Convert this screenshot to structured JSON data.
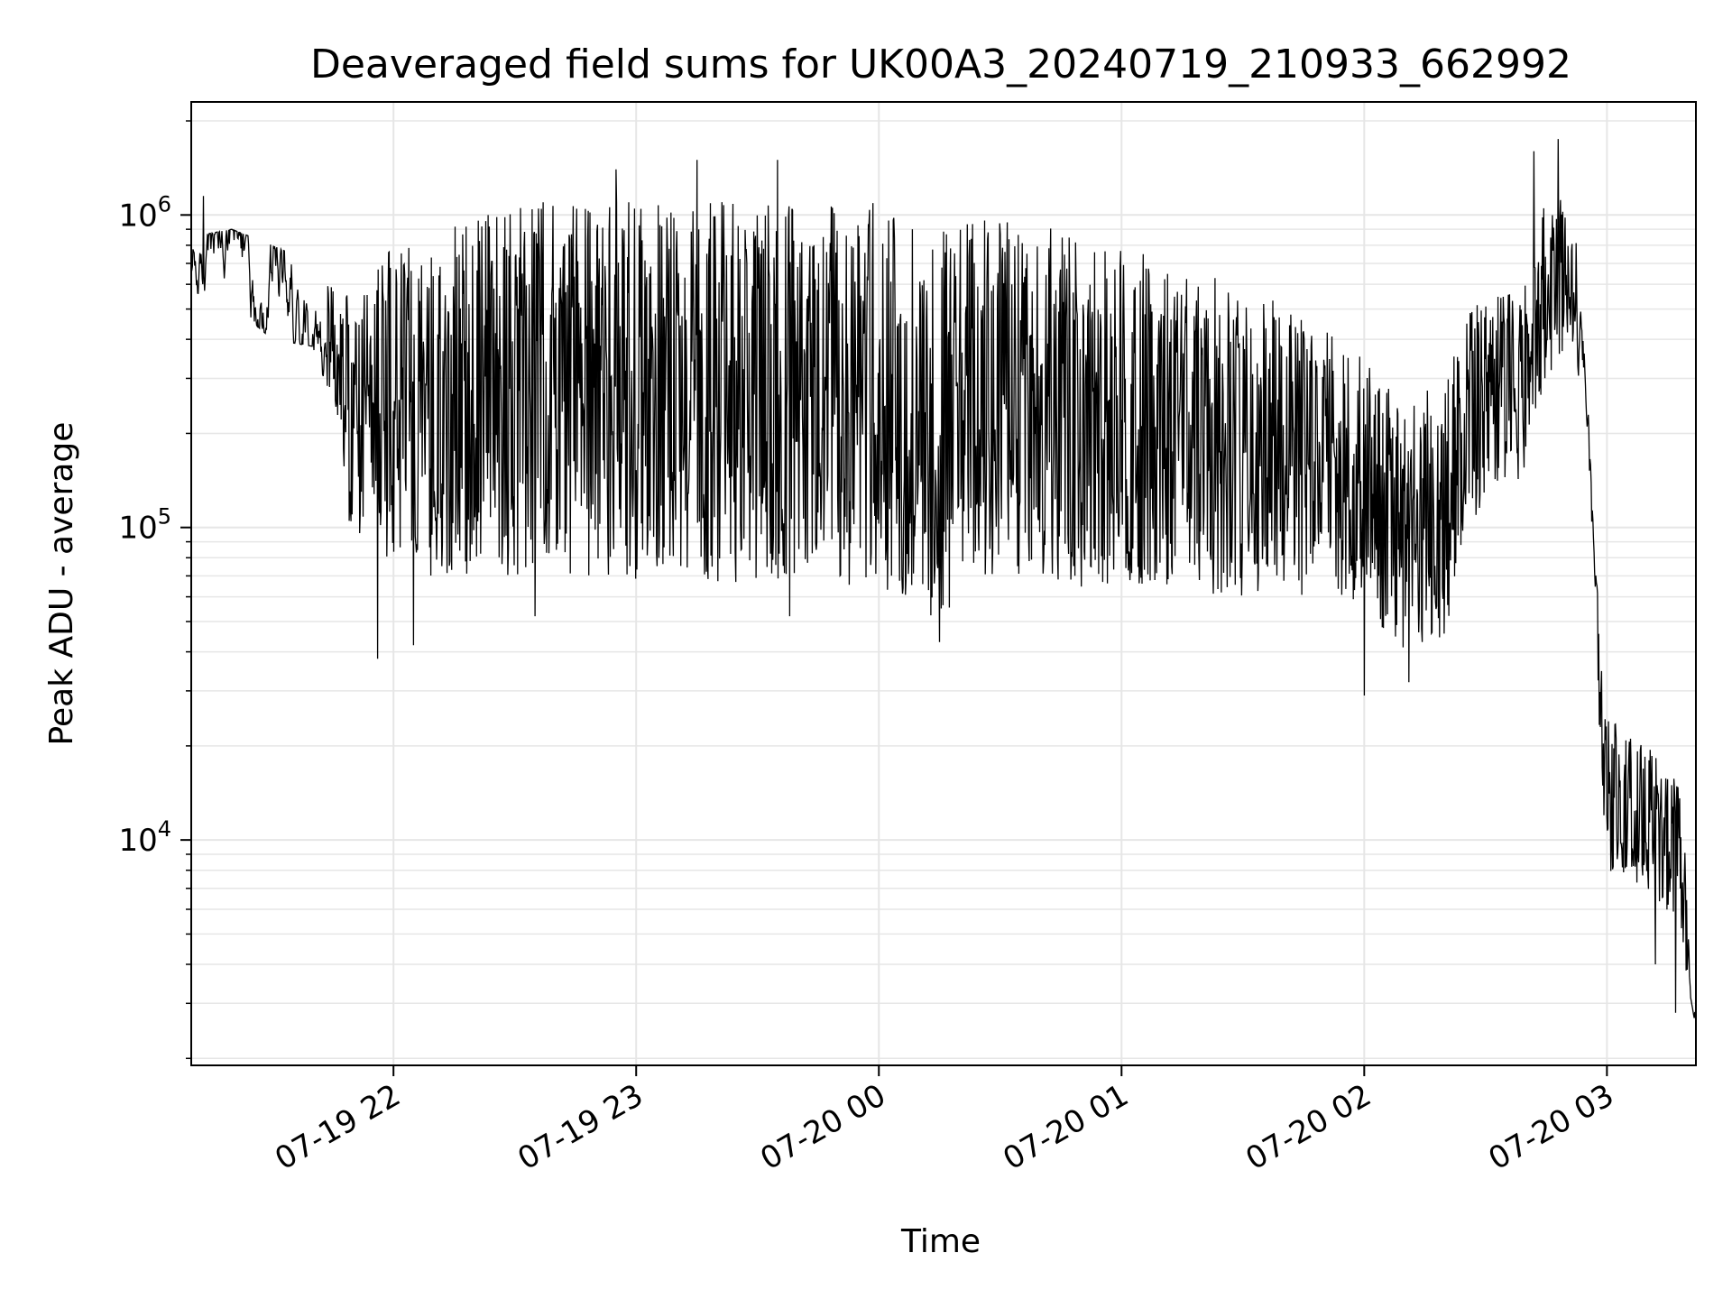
{
  "chart_data": {
    "type": "line",
    "title": "Deaveraged field sums for UK00A3_20240719_210933_662992",
    "xlabel": "Time",
    "ylabel": "Peak ADU - average",
    "yscale": "log",
    "ylim": [
      1900,
      2300000
    ],
    "xlim": [
      "2024-07-19 21:10",
      "2024-07-20 03:22"
    ],
    "grid": true,
    "line_color": "#000000",
    "grid_color": "#e6e6e6",
    "x_ticks": [
      {
        "value": "2024-07-19 22:00",
        "label": "07-19 22"
      },
      {
        "value": "2024-07-19 23:00",
        "label": "07-19 23"
      },
      {
        "value": "2024-07-20 00:00",
        "label": "07-20 00"
      },
      {
        "value": "2024-07-20 01:00",
        "label": "07-20 01"
      },
      {
        "value": "2024-07-20 02:00",
        "label": "07-20 02"
      },
      {
        "value": "2024-07-20 03:00",
        "label": "07-20 03"
      }
    ],
    "y_ticks": [
      {
        "value": 10000,
        "base": "10",
        "exp": "4"
      },
      {
        "value": 100000,
        "base": "10",
        "exp": "5"
      },
      {
        "value": 1000000,
        "base": "10",
        "exp": "6"
      }
    ],
    "series": [
      {
        "envelope": [
          {
            "t": "2024-07-19 21:10",
            "low": 550000,
            "high": 850000
          },
          {
            "t": "2024-07-19 21:20",
            "low": 520000,
            "high": 900000
          },
          {
            "t": "2024-07-19 21:30",
            "low": 400000,
            "high": 800000
          },
          {
            "t": "2024-07-19 21:40",
            "low": 380000,
            "high": 700000
          },
          {
            "t": "2024-07-19 21:45",
            "low": 250000,
            "high": 600000
          },
          {
            "t": "2024-07-19 21:50",
            "low": 90000,
            "high": 550000
          },
          {
            "t": "2024-07-19 22:00",
            "low": 70000,
            "high": 800000
          },
          {
            "t": "2024-07-19 22:30",
            "low": 70000,
            "high": 1100000
          },
          {
            "t": "2024-07-20 00:00",
            "low": 65000,
            "high": 1100000
          },
          {
            "t": "2024-07-20 00:15",
            "low": 50000,
            "high": 900000
          },
          {
            "t": "2024-07-20 00:30",
            "low": 70000,
            "high": 1000000
          },
          {
            "t": "2024-07-20 01:00",
            "low": 60000,
            "high": 800000
          },
          {
            "t": "2024-07-20 01:30",
            "low": 60000,
            "high": 600000
          },
          {
            "t": "2024-07-20 01:55",
            "low": 60000,
            "high": 400000
          },
          {
            "t": "2024-07-20 02:10",
            "low": 40000,
            "high": 250000
          },
          {
            "t": "2024-07-20 02:20",
            "low": 45000,
            "high": 300000
          },
          {
            "t": "2024-07-20 02:25",
            "low": 100000,
            "high": 500000
          },
          {
            "t": "2024-07-20 02:40",
            "low": 150000,
            "high": 600000
          },
          {
            "t": "2024-07-20 02:45",
            "low": 300000,
            "high": 1300000
          },
          {
            "t": "2024-07-20 02:52",
            "low": 400000,
            "high": 1000000
          },
          {
            "t": "2024-07-20 02:55",
            "low": 150000,
            "high": 300000
          },
          {
            "t": "2024-07-20 02:57",
            "low": 40000,
            "high": 80000
          },
          {
            "t": "2024-07-20 03:00",
            "low": 8000,
            "high": 25000
          },
          {
            "t": "2024-07-20 03:10",
            "low": 7000,
            "high": 20000
          },
          {
            "t": "2024-07-20 03:18",
            "low": 5000,
            "high": 15000
          },
          {
            "t": "2024-07-20 03:22",
            "low": 2500,
            "high": 4000
          }
        ],
        "spikes": [
          {
            "t": "2024-07-19 21:13",
            "value": 1150000
          },
          {
            "t": "2024-07-19 21:49",
            "value": 105000
          },
          {
            "t": "2024-07-19 21:56",
            "value": 38000
          },
          {
            "t": "2024-07-19 22:05",
            "value": 42000
          },
          {
            "t": "2024-07-19 22:35",
            "value": 52000
          },
          {
            "t": "2024-07-19 22:55",
            "value": 1400000
          },
          {
            "t": "2024-07-19 23:15",
            "value": 1500000
          },
          {
            "t": "2024-07-19 23:35",
            "value": 1500000
          },
          {
            "t": "2024-07-19 23:38",
            "value": 52000
          },
          {
            "t": "2024-07-20 00:15",
            "value": 43000
          },
          {
            "t": "2024-07-20 02:00",
            "value": 29000
          },
          {
            "t": "2024-07-20 02:11",
            "value": 32000
          },
          {
            "t": "2024-07-20 02:42",
            "value": 1600000
          },
          {
            "t": "2024-07-20 02:48",
            "value": 1750000
          },
          {
            "t": "2024-07-20 03:12",
            "value": 4000
          },
          {
            "t": "2024-07-20 03:17",
            "value": 2800
          }
        ]
      }
    ]
  }
}
